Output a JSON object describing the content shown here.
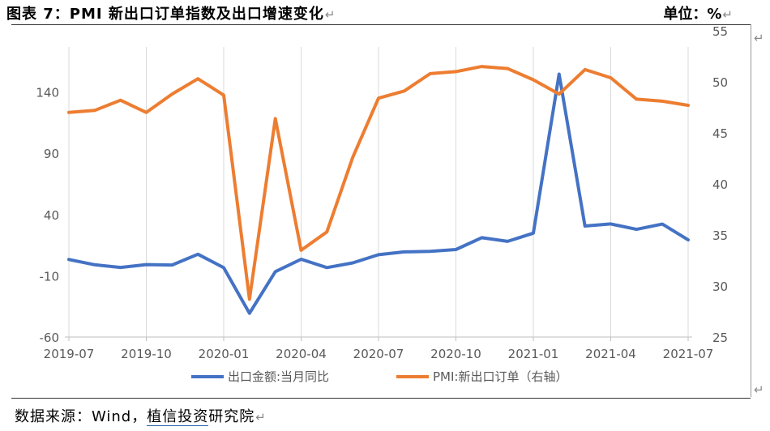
{
  "header": {
    "title": "图表 7：PMI 新出口订单指数及出口增速变化",
    "unit": "单位：%"
  },
  "footer": {
    "source_prefix": "数据来源：Wind，",
    "source_org": "植信投资",
    "source_suffix": "研究院"
  },
  "chart_data": {
    "type": "line",
    "title": "",
    "x_tick_labels": [
      "2019-07",
      "2019-10",
      "2020-01",
      "2020-04",
      "2020-07",
      "2020-10",
      "2021-01",
      "2021-04",
      "2021-07"
    ],
    "x": [
      "2019-07",
      "2019-08",
      "2019-09",
      "2019-10",
      "2019-11",
      "2019-12",
      "2020-01",
      "2020-02",
      "2020-03",
      "2020-04",
      "2020-05",
      "2020-06",
      "2020-07",
      "2020-08",
      "2020-09",
      "2020-10",
      "2020-11",
      "2020-12",
      "2021-01",
      "2021-02",
      "2021-03",
      "2021-04",
      "2021-05",
      "2021-06",
      "2021-07"
    ],
    "y_left": {
      "min": -60,
      "max": 190,
      "ticks": [
        -60,
        -10,
        40,
        90,
        140
      ]
    },
    "y_right": {
      "min": 25,
      "max": 55,
      "ticks": [
        25,
        30,
        35,
        40,
        45,
        50,
        55
      ]
    },
    "grid": "vertical",
    "legend_position": "bottom",
    "series": [
      {
        "name": "出口金额:当月同比",
        "axis": "left",
        "color": "#4472C4",
        "values": [
          3.3,
          -1,
          -3.2,
          -0.9,
          -1.2,
          7.6,
          -3.4,
          -40.6,
          -6.6,
          3.5,
          -3.3,
          0.5,
          7.2,
          9.5,
          9.9,
          11.4,
          21.1,
          18.1,
          24.8,
          154.6,
          30.6,
          32.3,
          27.9,
          32.2,
          19.3
        ]
      },
      {
        "name": "PMI:新出口订单（右轴）",
        "axis": "right",
        "color": "#ED7D31",
        "values": [
          47.0,
          47.2,
          48.2,
          47.0,
          48.8,
          50.3,
          48.7,
          28.7,
          46.4,
          33.5,
          35.3,
          42.6,
          48.4,
          49.1,
          50.8,
          51.0,
          51.5,
          51.3,
          50.2,
          48.8,
          51.2,
          50.4,
          48.3,
          48.1,
          47.7
        ]
      }
    ]
  }
}
